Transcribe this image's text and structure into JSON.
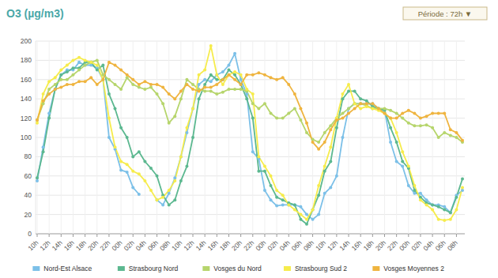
{
  "chart_data": {
    "type": "line",
    "title": "O3 (µg/m3)",
    "period_selector": "Période : 72h ▼",
    "categories": [
      "10h",
      null,
      "12h",
      null,
      "14h",
      null,
      "16h",
      null,
      "18h",
      null,
      "20h",
      null,
      "22h",
      null,
      "00h",
      null,
      "02h",
      null,
      "04h",
      null,
      "06h",
      null,
      "08h",
      null,
      "10h",
      null,
      "12h",
      null,
      "14h",
      null,
      "16h",
      null,
      "18h",
      null,
      "20h",
      null,
      "22h",
      null,
      "00h",
      null,
      "02h",
      null,
      "04h",
      null,
      "06h",
      null,
      "08h",
      null,
      "10h",
      null,
      "12h",
      null,
      "14h",
      null,
      "16h",
      null,
      "18h",
      null,
      "20h",
      null,
      "22h",
      null,
      "00h",
      null,
      "02h",
      null,
      "04h",
      null,
      "06h",
      null,
      "08h",
      null
    ],
    "series": [
      {
        "name": "Nord-Est Alsace",
        "color": "#7cc0e8",
        "values": [
          55,
          90,
          125,
          150,
          165,
          170,
          170,
          178,
          175,
          175,
          172,
          160,
          100,
          88,
          66,
          64,
          48,
          41,
          null,
          null,
          35,
          30,
          42,
          58,
          80,
          105,
          130,
          155,
          160,
          158,
          165,
          168,
          175,
          187,
          160,
          145,
          85,
          78,
          45,
          35,
          29,
          30,
          30,
          30,
          28,
          20,
          15,
          20,
          42,
          48,
          60,
          100,
          130,
          135,
          135,
          135,
          135,
          130,
          128,
          95,
          75,
          70,
          50,
          42,
          42,
          35,
          30,
          30,
          28,
          22,
          40,
          45
        ]
      },
      {
        "name": "Strasbourg Nord",
        "color": "#5cb890",
        "values": [
          58,
          85,
          120,
          150,
          165,
          168,
          172,
          172,
          178,
          178,
          170,
          175,
          145,
          130,
          110,
          100,
          80,
          85,
          75,
          68,
          60,
          40,
          30,
          35,
          55,
          70,
          100,
          140,
          155,
          165,
          160,
          160,
          170,
          165,
          155,
          140,
          120,
          65,
          65,
          50,
          38,
          35,
          32,
          30,
          15,
          10,
          25,
          40,
          65,
          75,
          110,
          140,
          148,
          148,
          140,
          138,
          132,
          130,
          128,
          110,
          95,
          75,
          68,
          45,
          38,
          32,
          30,
          28,
          25,
          22,
          38,
          57
        ]
      },
      {
        "name": "Vosges du Nord",
        "color": "#b6d56c",
        "values": [
          118,
          135,
          150,
          155,
          160,
          160,
          165,
          170,
          175,
          178,
          180,
          165,
          160,
          155,
          150,
          162,
          155,
          152,
          150,
          152,
          145,
          135,
          115,
          122,
          140,
          160,
          155,
          150,
          148,
          148,
          145,
          147,
          150,
          150,
          150,
          148,
          135,
          130,
          135,
          125,
          120,
          120,
          125,
          130,
          118,
          105,
          98,
          95,
          105,
          112,
          120,
          125,
          130,
          135,
          135,
          133,
          130,
          130,
          130,
          128,
          125,
          120,
          115,
          112,
          112,
          113,
          110,
          100,
          105,
          102,
          100,
          95
        ]
      },
      {
        "name": "Strasbourg Sud 2",
        "color": "#f6ec4c",
        "values": [
          115,
          145,
          158,
          162,
          170,
          175,
          180,
          183,
          180,
          178,
          175,
          160,
          120,
          90,
          75,
          72,
          65,
          62,
          55,
          45,
          35,
          38,
          45,
          55,
          80,
          110,
          130,
          165,
          170,
          195,
          165,
          155,
          165,
          168,
          165,
          150,
          145,
          80,
          70,
          60,
          45,
          40,
          30,
          25,
          20,
          15,
          25,
          50,
          70,
          90,
          120,
          145,
          155,
          135,
          130,
          132,
          130,
          128,
          125,
          120,
          105,
          85,
          70,
          50,
          35,
          30,
          25,
          15,
          14,
          15,
          25,
          48
        ]
      },
      {
        "name": "Vosges Moyennes 2",
        "color": "#efb43f",
        "values": [
          118,
          138,
          145,
          150,
          152,
          155,
          155,
          158,
          158,
          162,
          155,
          160,
          178,
          175,
          170,
          165,
          160,
          155,
          158,
          155,
          155,
          152,
          145,
          140,
          148,
          155,
          150,
          148,
          152,
          152,
          155,
          160,
          165,
          160,
          155,
          165,
          165,
          167,
          165,
          162,
          160,
          162,
          155,
          145,
          130,
          115,
          95,
          88,
          95,
          108,
          118,
          120,
          125,
          130,
          135,
          135,
          135,
          130,
          125,
          120,
          120,
          125,
          128,
          125,
          120,
          122,
          125,
          125,
          125,
          108,
          105,
          97
        ]
      }
    ],
    "ylim": [
      0,
      200
    ],
    "yticks": [
      0,
      20,
      40,
      60,
      80,
      100,
      120,
      140,
      160,
      180,
      200
    ],
    "grid": true,
    "legend": "bottom",
    "marker": "circle"
  }
}
